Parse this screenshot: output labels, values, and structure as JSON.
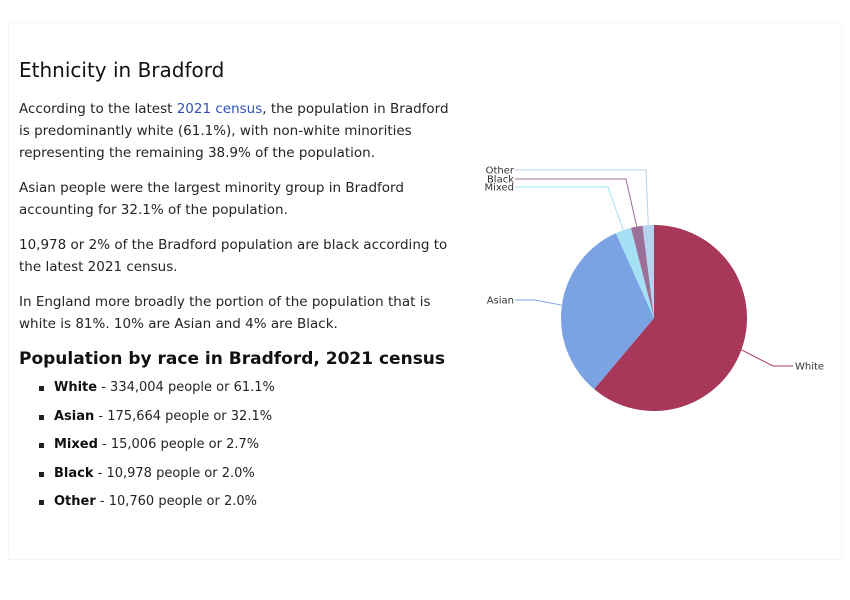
{
  "heading": "Ethnicity in Bradford",
  "paragraphs": {
    "p1_prefix": "According to the latest ",
    "p1_link": "2021 census",
    "p1_suffix": ", the population in Bradford is predominantly white (61.1%), with non-white minorities representing the remaining 38.9% of the population.",
    "p2": "Asian people were the largest minority group in Bradford accounting for 32.1% of the population.",
    "p3": "10,978 or 2% of the Bradford population are black according to the latest 2021 census.",
    "p4": "In England more broadly the portion of the population that is white is 81%. 10% are Asian and 4% are Black."
  },
  "list_heading": "Population by race in Bradford, 2021 census",
  "list": [
    {
      "label": "White",
      "text": " - 334,004 people or 61.1%"
    },
    {
      "label": "Asian",
      "text": " - 175,664 people or 32.1%"
    },
    {
      "label": "Mixed",
      "text": " - 15,006 people or 2.7%"
    },
    {
      "label": "Black",
      "text": " - 10,978 people or 2.0%"
    },
    {
      "label": "Other",
      "text": " - 10,760 people or 2.0%"
    }
  ],
  "chart_data": {
    "type": "pie",
    "title": "",
    "slices": [
      {
        "name": "White",
        "value": 334004,
        "color": "#a8385a"
      },
      {
        "name": "Asian",
        "value": 175664,
        "color": "#7ba3e3"
      },
      {
        "name": "Mixed",
        "value": 15006,
        "color": "#a6e0f5"
      },
      {
        "name": "Black",
        "value": 10978,
        "color": "#9b6f98"
      },
      {
        "name": "Other",
        "value": 10760,
        "color": "#b7d2ee"
      }
    ]
  }
}
